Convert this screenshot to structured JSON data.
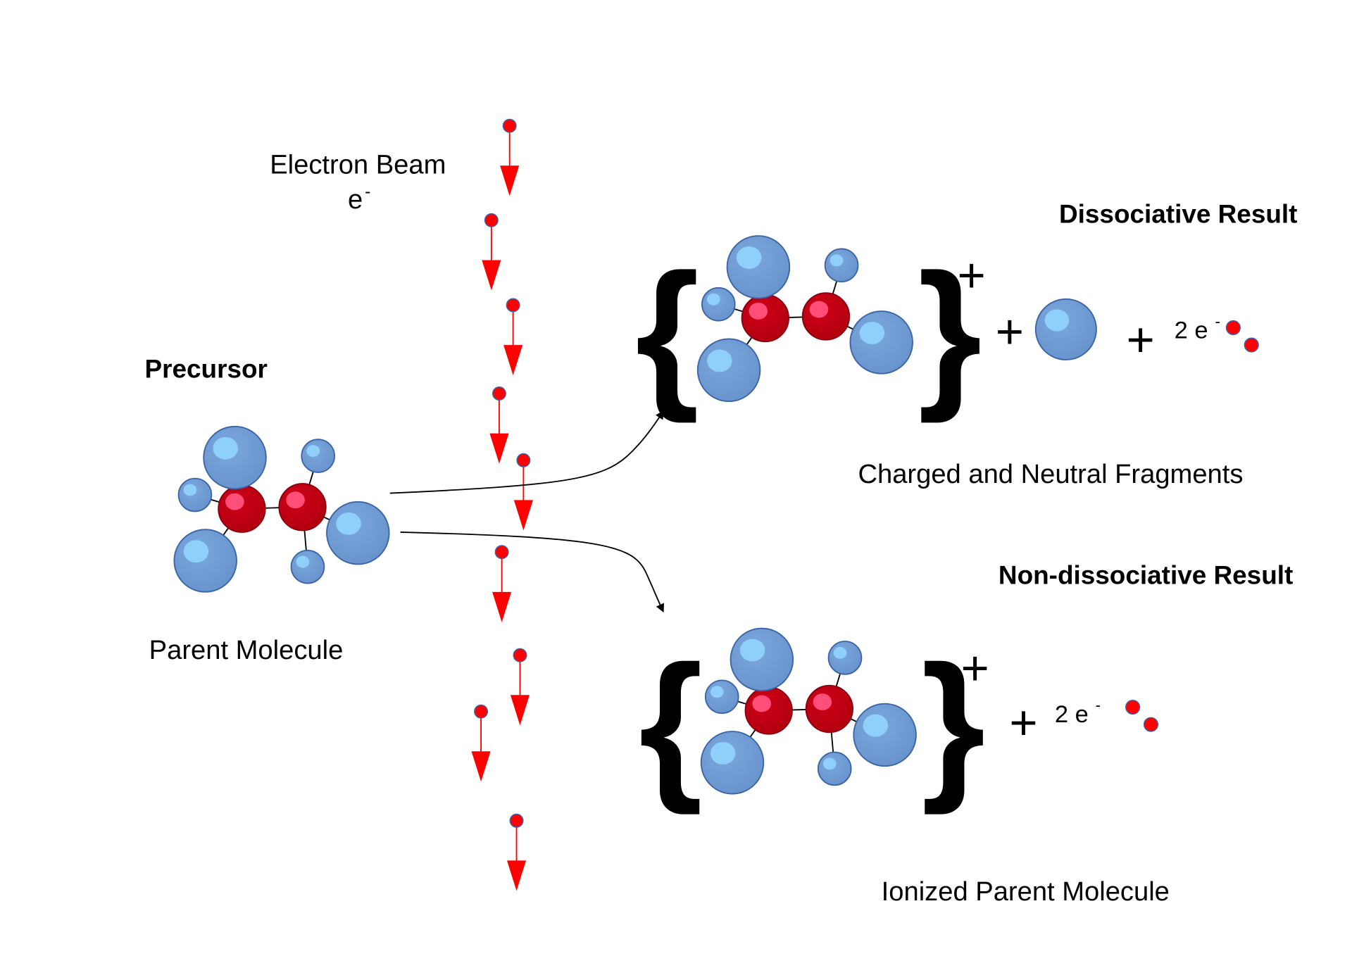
{
  "beam": {
    "label": "Electron Beam",
    "symbol": "e",
    "charge": "-"
  },
  "precursor": {
    "title": "Precursor",
    "caption": "Parent Molecule"
  },
  "dissociative": {
    "title": "Dissociative Result",
    "caption": "Charged and Neutral Fragments",
    "open": "{",
    "close": "}",
    "charge": "+",
    "plus_1": "+",
    "plus_2": "+",
    "electrons": "2 e",
    "electron_charge": "-"
  },
  "non_dissociative": {
    "title": "Non-dissociative Result",
    "caption": "Ionized Parent Molecule",
    "open": "{",
    "close": "}",
    "charge": "+",
    "plus_1": "+",
    "electrons": "2 e",
    "electron_charge": "-"
  }
}
